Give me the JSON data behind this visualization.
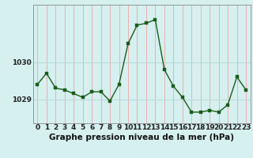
{
  "x": [
    0,
    1,
    2,
    3,
    4,
    5,
    6,
    7,
    8,
    9,
    10,
    11,
    12,
    13,
    14,
    15,
    16,
    17,
    18,
    19,
    20,
    21,
    22,
    23
  ],
  "y": [
    1029.4,
    1029.7,
    1029.3,
    1029.25,
    1029.15,
    1029.05,
    1029.2,
    1029.2,
    1028.95,
    1029.4,
    1030.5,
    1031.0,
    1031.05,
    1031.15,
    1029.8,
    1029.35,
    1029.05,
    1028.65,
    1028.65,
    1028.7,
    1028.65,
    1028.85,
    1029.6,
    1029.25
  ],
  "line_color": "#1a5c1a",
  "marker_color": "#1a5c1a",
  "background_color": "#d6f0f0",
  "vgrid_color": "#e8b0b0",
  "hgrid_color": "#b8d8d8",
  "xlabel": "Graphe pression niveau de la mer (hPa)",
  "ylabel_ticks": [
    1029,
    1030
  ],
  "ylim": [
    1028.35,
    1031.55
  ],
  "xlim": [
    -0.5,
    23.5
  ],
  "tick_fontsize": 6.5,
  "xlabel_fontsize": 7.5,
  "line_width": 1.0,
  "marker_size": 2.5
}
